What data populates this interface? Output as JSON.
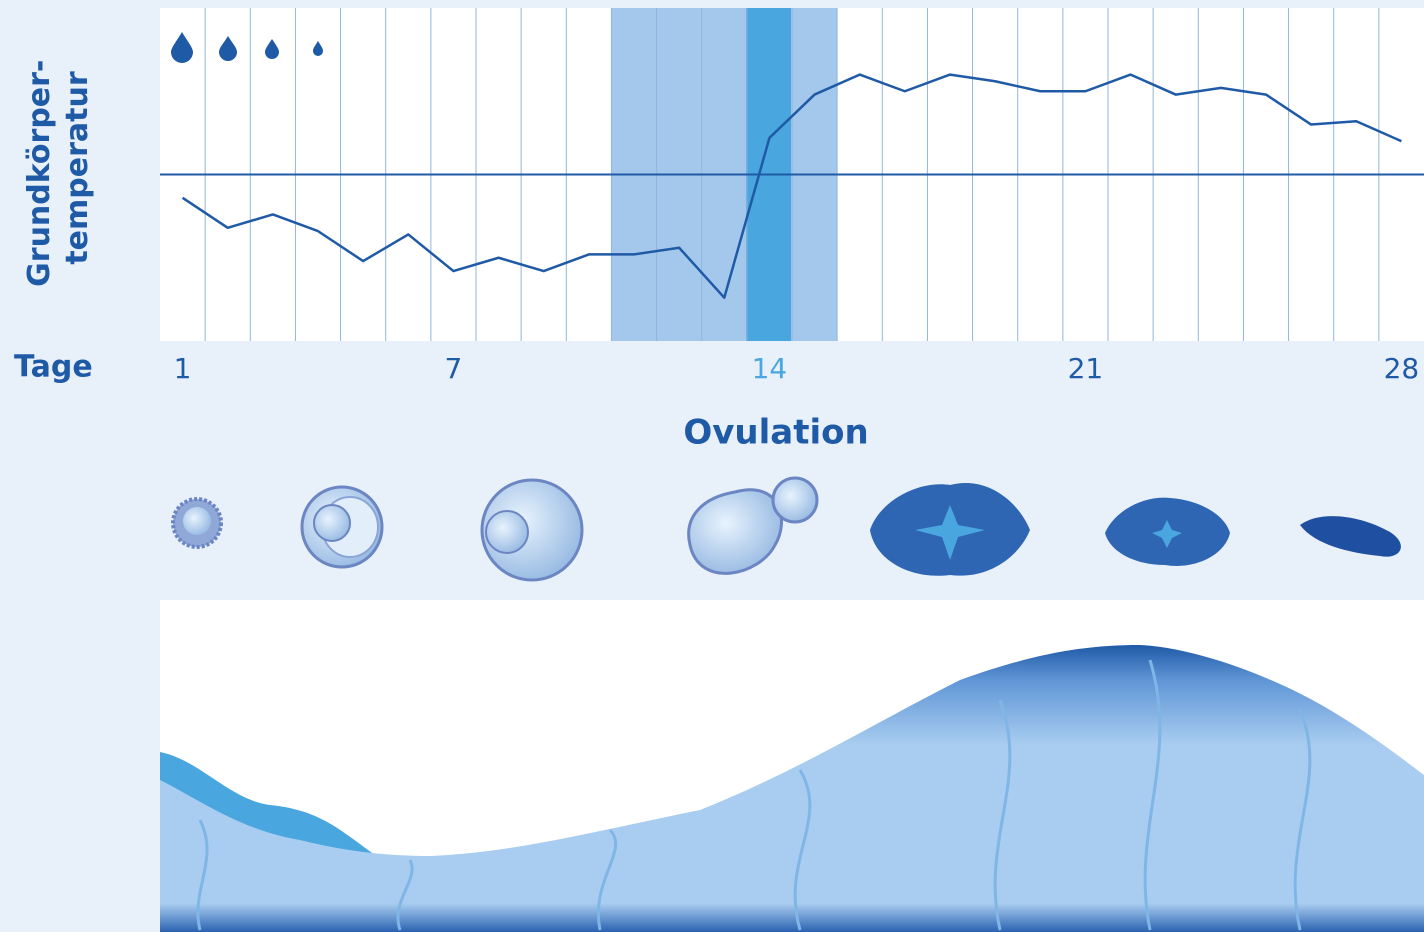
{
  "chart_data": {
    "type": "line",
    "ylabel": [
      "Grundkörper-",
      "temperatur"
    ],
    "xlabel": "Tage",
    "annotation": "Ovulation",
    "categories": [
      1,
      null,
      null,
      null,
      null,
      null,
      7,
      null,
      null,
      null,
      null,
      null,
      null,
      14,
      null,
      null,
      null,
      null,
      null,
      null,
      21,
      null,
      null,
      null,
      null,
      null,
      null,
      28
    ],
    "values": [
      43,
      34,
      38,
      33,
      24,
      32,
      21,
      25,
      21,
      26,
      26,
      28,
      13,
      61,
      74,
      80,
      75,
      80,
      78,
      75,
      75,
      80,
      74,
      76,
      74,
      65,
      66,
      60
    ],
    "ylim": [
      0,
      100
    ],
    "reference_line": 50,
    "color": "#1f5aa6",
    "grid": true
  }
}
